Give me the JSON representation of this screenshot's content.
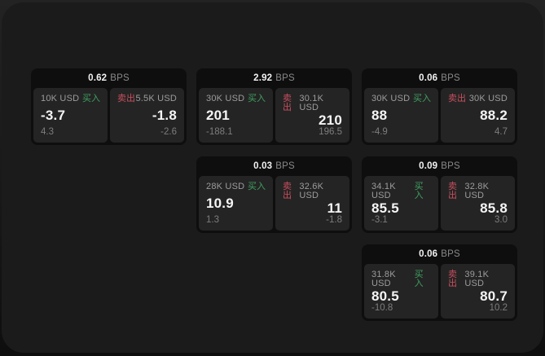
{
  "labels": {
    "bps_unit": "BPS",
    "buy": "买入",
    "sell": "卖出"
  },
  "colors": {
    "window_bg": "#1b1b1b",
    "card_bg": "#0e0e0e",
    "panel_bg": "#242424",
    "buy_green": "#3fa061",
    "sell_red": "#c84f5e",
    "value_white": "#f5f5f5",
    "label_gray": "#9c9c9c",
    "sub_gray": "#7d7d7d"
  },
  "cards": [
    {
      "col": 1,
      "row": 1,
      "bps": "0.62",
      "buy": {
        "amount": "10K USD",
        "value": "-3.7",
        "delta": "4.3"
      },
      "sell": {
        "amount": "5.5K USD",
        "value": "-1.8",
        "delta": "-2.6"
      }
    },
    {
      "col": 2,
      "row": 1,
      "bps": "2.92",
      "buy": {
        "amount": "30K USD",
        "value": "201",
        "delta": "-188.1"
      },
      "sell": {
        "amount": "30.1K USD",
        "value": "210",
        "delta": "196.5"
      }
    },
    {
      "col": 3,
      "row": 1,
      "bps": "0.06",
      "buy": {
        "amount": "30K USD",
        "value": "88",
        "delta": "-4.9"
      },
      "sell": {
        "amount": "30K USD",
        "value": "88.2",
        "delta": "4.7"
      }
    },
    {
      "col": 2,
      "row": 2,
      "bps": "0.03",
      "buy": {
        "amount": "28K USD",
        "value": "10.9",
        "delta": "1.3"
      },
      "sell": {
        "amount": "32.6K USD",
        "value": "11",
        "delta": "-1.8"
      }
    },
    {
      "col": 3,
      "row": 2,
      "bps": "0.09",
      "buy": {
        "amount": "34.1K USD",
        "value": "85.5",
        "delta": "-3.1"
      },
      "sell": {
        "amount": "32.8K USD",
        "value": "85.8",
        "delta": "3.0"
      }
    },
    {
      "col": 3,
      "row": 3,
      "bps": "0.06",
      "buy": {
        "amount": "31.8K USD",
        "value": "80.5",
        "delta": "-10.8"
      },
      "sell": {
        "amount": "39.1K USD",
        "value": "80.7",
        "delta": "10.2"
      }
    }
  ]
}
